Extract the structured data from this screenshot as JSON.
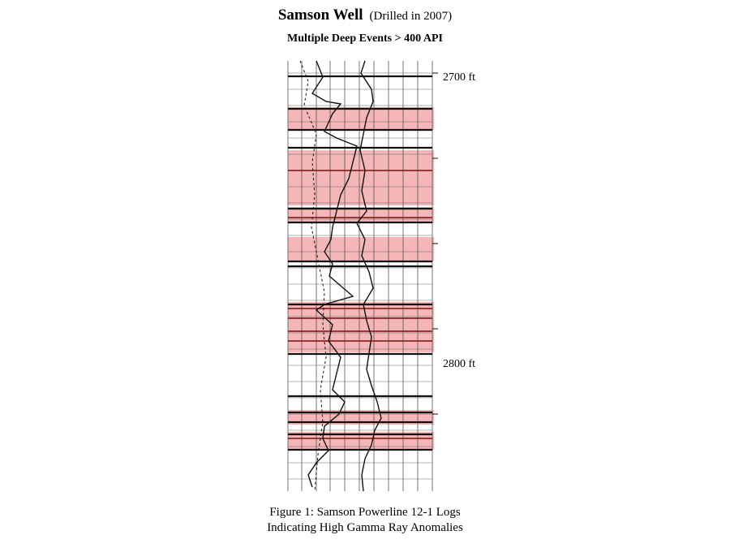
{
  "title": {
    "main": "Samson Well",
    "note": "(Drilled in 2007)"
  },
  "subtitle": "Multiple Deep Events > 400 API",
  "depth_labels": [
    "2700 ft",
    "2800 ft"
  ],
  "caption": {
    "line1": "Figure 1: Samson Powerline 12-1 Logs",
    "line2": "Indicating High Gamma Ray Anomalies"
  },
  "colors": {
    "highlight": "#f4b6b6",
    "grid": "#555555",
    "curve": "#111111",
    "heavy_line": "#7a1010"
  }
}
